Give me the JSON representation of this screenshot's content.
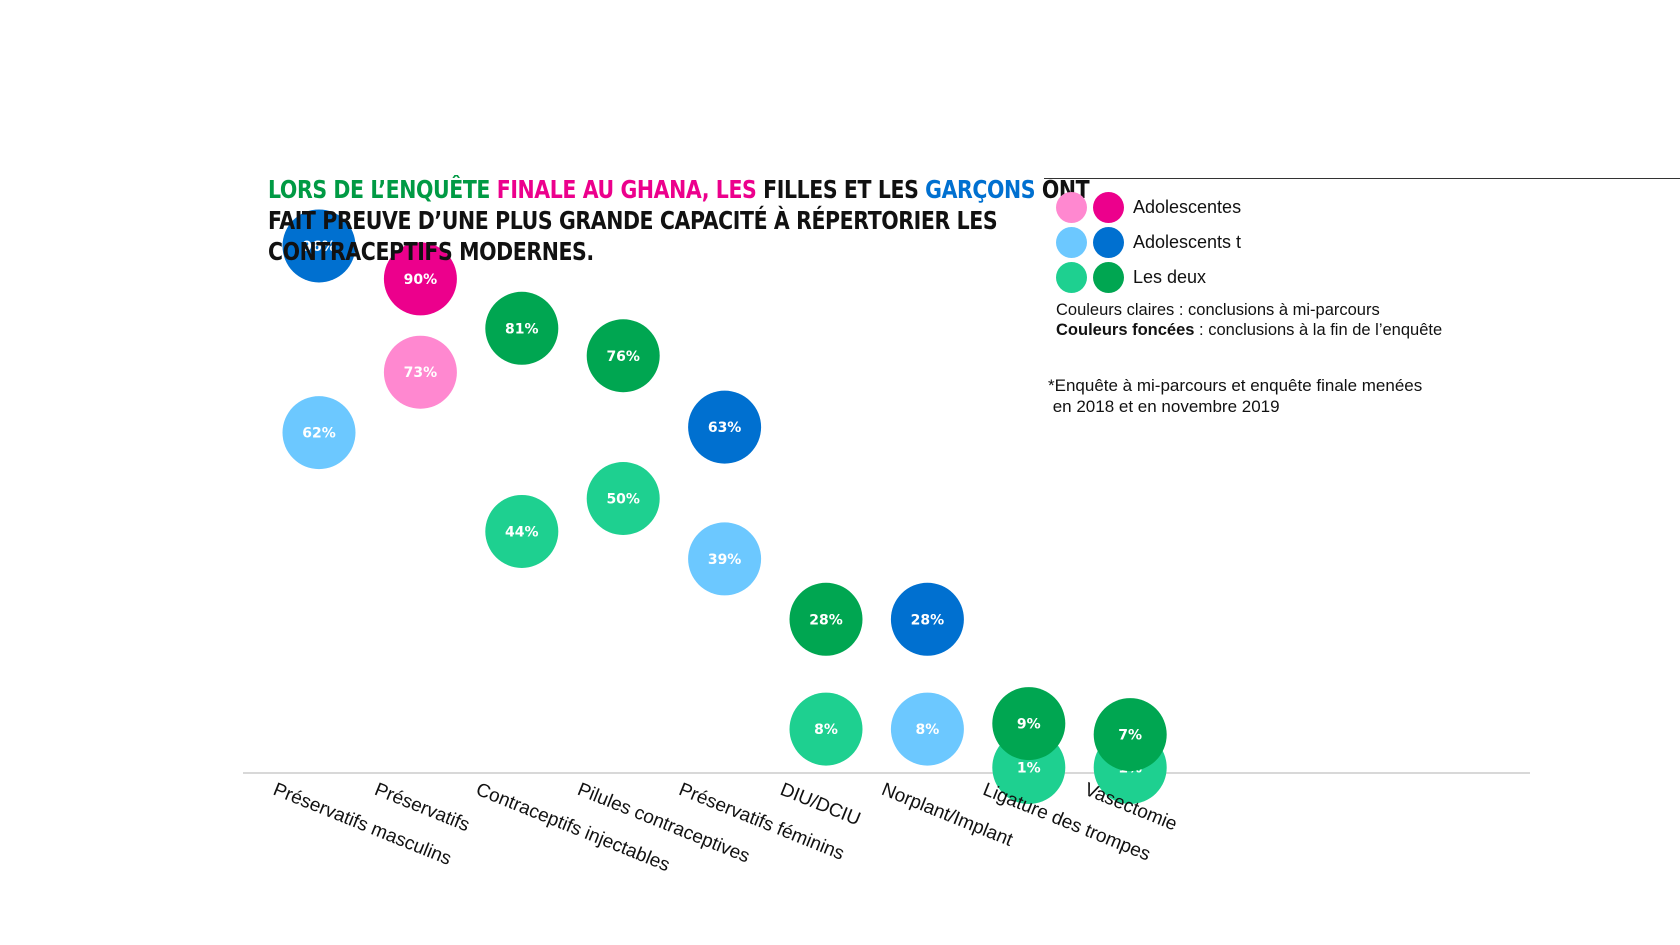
{
  "title": {
    "part1": "LORS DE L’ENQUÊTE ",
    "part2": "FINALE AU GHANA, LES ",
    "part3": "FILLES ET LES ",
    "part4": "GARÇONS",
    "part5": " ONT",
    "line2": "FAIT PREUVE D’UNE PLUS GRANDE CAPACITÉ À RÉPERTORIER LES",
    "line3": "CONTRACEPTIFS MODERNES."
  },
  "legend": {
    "items": [
      {
        "label": "Adolescentes",
        "light": "#ff88d0",
        "dark": "#ec008c"
      },
      {
        "label": "Adolescents t",
        "light": "#6cc8ff",
        "dark": "#0070d0"
      },
      {
        "label": "Les deux",
        "light": "#1ed090",
        "dark": "#00a651"
      }
    ],
    "light_bold": "Couleurs claires",
    "light_text": " : conclusions à mi-parcours",
    "dark_bold": "Couleurs foncées",
    "dark_text": " : conclusions à la fin de l’enquête"
  },
  "footnote": "*Enquête à mi-parcours et enquête finale menées\n en 2018 et en novembre 2019",
  "chart_data": {
    "type": "scatter",
    "ylim": [
      0,
      100
    ],
    "categories": [
      "Préservatifs masculins",
      "Préservatifs",
      "Contraceptifs injectables",
      "Pilules contraceptives",
      "Préservatifs féminins",
      "DIU/DCIU",
      "Norplant/Implant",
      "Ligature des trompes",
      "Vasectomie"
    ],
    "series": [
      {
        "group": "boys",
        "phase": "end",
        "color": "#0070d0",
        "values": [
          96,
          null,
          null,
          null,
          63,
          null,
          28,
          null,
          null
        ]
      },
      {
        "group": "boys",
        "phase": "mid",
        "color": "#6cc8ff",
        "values": [
          62,
          null,
          null,
          null,
          39,
          null,
          8,
          null,
          null
        ]
      },
      {
        "group": "girls",
        "phase": "end",
        "color": "#ec008c",
        "values": [
          null,
          90,
          null,
          null,
          null,
          null,
          null,
          null,
          null
        ]
      },
      {
        "group": "girls",
        "phase": "mid",
        "color": "#ff88d0",
        "values": [
          null,
          73,
          null,
          null,
          null,
          null,
          null,
          null,
          null
        ]
      },
      {
        "group": "both",
        "phase": "mid",
        "color": "#1ed090",
        "values": [
          null,
          null,
          44,
          50,
          null,
          8,
          null,
          1,
          1
        ]
      },
      {
        "group": "both",
        "phase": "end",
        "color": "#00a651",
        "values": [
          null,
          null,
          81,
          76,
          null,
          28,
          null,
          9,
          7
        ]
      }
    ]
  }
}
